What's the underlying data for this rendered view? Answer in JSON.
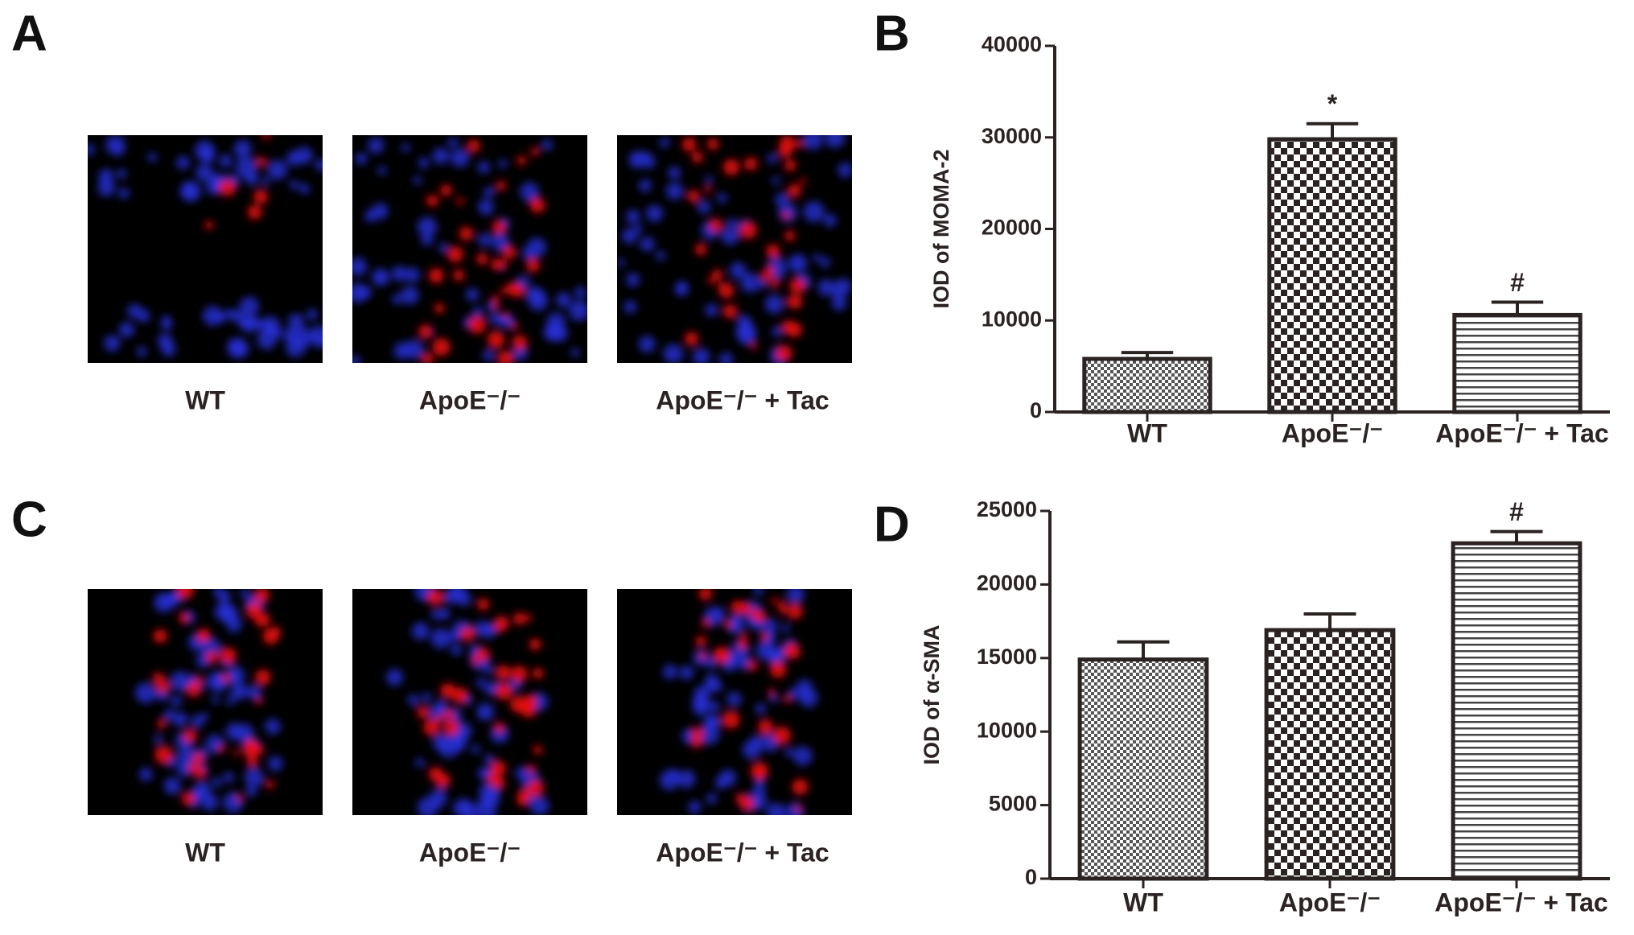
{
  "panel_labels": [
    "A",
    "B",
    "C",
    "D"
  ],
  "image_rows": [
    {
      "captions": [
        "WT",
        "ApoE⁻/⁻",
        "ApoE⁻/⁻ + Tac"
      ]
    },
    {
      "captions": [
        "WT",
        "ApoE⁻/⁻",
        "ApoE⁻/⁻ + Tac"
      ]
    }
  ],
  "chart_data": [
    {
      "type": "bar",
      "y_label": "IOD of MOMA-2",
      "categories": [
        "WT",
        "ApoE⁻/⁻",
        "ApoE⁻/⁻ + Tac"
      ],
      "values": [
        5800,
        29800,
        10600
      ],
      "errors": [
        700,
        1700,
        1400
      ],
      "bar_labels": [
        null,
        "*",
        "#"
      ],
      "patterns": [
        "fine-check",
        "check",
        "stripes"
      ],
      "color": "#2b2222",
      "ylim": [
        0,
        40000
      ],
      "yticks": [
        0,
        10000,
        20000,
        30000,
        40000
      ]
    },
    {
      "type": "bar",
      "y_label": "IOD of α-SMA",
      "categories": [
        "WT",
        "ApoE⁻/⁻",
        "ApoE⁻/⁻ + Tac"
      ],
      "values": [
        14900,
        16900,
        22800
      ],
      "errors": [
        1200,
        1100,
        800
      ],
      "bar_labels": [
        null,
        null,
        "#"
      ],
      "patterns": [
        "fine-check",
        "check",
        "stripes"
      ],
      "color": "#2b2222",
      "ylim": [
        0,
        25000
      ],
      "yticks": [
        0,
        5000,
        10000,
        15000,
        20000,
        25000
      ]
    }
  ]
}
